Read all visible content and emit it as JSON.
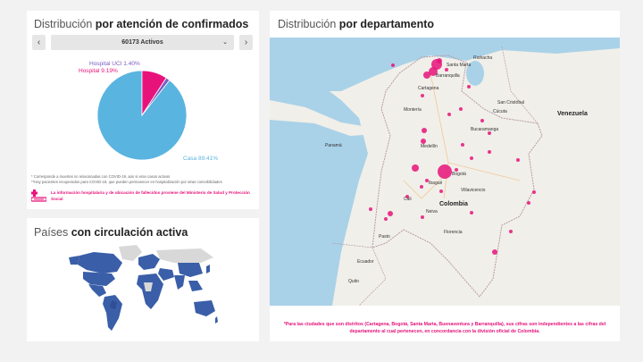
{
  "attention": {
    "title_prefix": "Distribución",
    "title_bold": "por atención de confirmados",
    "prev_icon": "chevron-left-icon",
    "next_icon": "chevron-right-icon",
    "selected_option": "60173 Activos",
    "colors": {
      "casa": "#5ab4e0",
      "hospital": "#e8137a",
      "uci": "#7a5cc4"
    },
    "labels": {
      "uci": "Hospital UCI 1.40%",
      "hospital": "Hospital 9.19%",
      "casa": "Casa 89.41%"
    },
    "notes": [
      "* Corresponde a muertes no relacionadas con COVID-19, aún si eran casos activos",
      "**Hay pacientes recuperados para COVID-19, que pueden permanecer en hospitalización por otras comorbilidades"
    ],
    "legal_icon": "hospital-icon",
    "legal_text": "La información hospitalaria y de ubicación de fallecidos proviene del Ministerio de Salud y Protección Social",
    "chart_data": {
      "type": "pie",
      "slices": [
        {
          "label": "Casa",
          "value": 89.41
        },
        {
          "label": "Hospital",
          "value": 9.19
        },
        {
          "label": "Hospital UCI",
          "value": 1.4
        }
      ]
    }
  },
  "countries": {
    "title_prefix": "Países",
    "title_bold": "con circulación activa",
    "colors": {
      "active": "#3a5ea8",
      "inactive": "#d8d8d8"
    }
  },
  "department": {
    "title_prefix": "Distribución",
    "title_bold": "por departamento",
    "marker_color": "#e8137a",
    "map_labels": {
      "venezuela": "Venezuela",
      "colombia": "Colombia",
      "panama": "Panamá",
      "ecuador": "Ecuador",
      "barranquilla": "Barranquilla",
      "cartagena": "Cartagena",
      "medellin": "Medellín",
      "bogota": "Bogotá",
      "cali": "Cali",
      "cucuta": "Cúcuta",
      "bucaramanga": "Bucaramanga",
      "san_cristobal": "San Cristóbal",
      "quito": "Quito",
      "pasto": "Pasto",
      "ibague": "Ibagué",
      "villavicencio": "Villavicencio",
      "neiva": "Neiva",
      "florencia": "Florencia",
      "santa_marta": "Santa Marta",
      "riohacha": "Riohacha",
      "monteria": "Montería"
    },
    "footnote": "*Para las ciudades que son distritos (Cartagena, Bogotá, Santa Marta, Buenaventura y Barranquilla), sus cifras son independientes a las cifras del departamento al cual pertenecen, en concordancia con la división oficial de Colombia."
  }
}
